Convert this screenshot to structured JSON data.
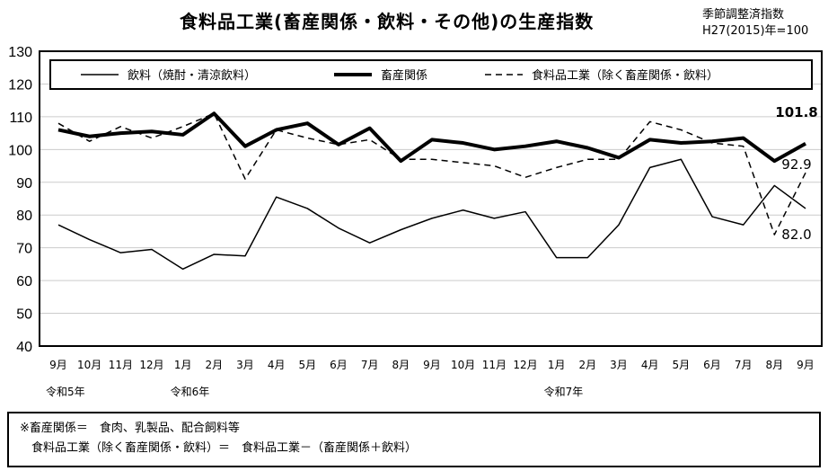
{
  "title": "食料品工業(畜産関係・飲料・その他)の生産指数",
  "subtitle": [
    "季節調整済指数",
    "H27(2015)年=100"
  ],
  "chart_data": {
    "type": "line",
    "categories": [
      "9月",
      "10月",
      "11月",
      "12月",
      "1月",
      "2月",
      "3月",
      "4月",
      "5月",
      "6月",
      "7月",
      "8月",
      "9月",
      "10月",
      "11月",
      "12月",
      "1月",
      "2月",
      "3月",
      "4月",
      "5月",
      "6月",
      "7月",
      "8月",
      "9月"
    ],
    "era_labels": [
      {
        "index": 0,
        "label": "令和5年"
      },
      {
        "index": 4,
        "label": "令和6年"
      },
      {
        "index": 16,
        "label": "令和7年"
      }
    ],
    "ylim": [
      40,
      130
    ],
    "yticks": [
      40,
      50,
      60,
      70,
      80,
      90,
      100,
      110,
      120,
      130
    ],
    "grid": true,
    "legend": "top",
    "series": [
      {
        "name": "飲料（焼酎・清涼飲料）",
        "style": "thin",
        "values": [
          77,
          72.5,
          68.5,
          69.5,
          63.5,
          68,
          67.5,
          85.5,
          82,
          76,
          71.5,
          75.5,
          79,
          81.5,
          79,
          81,
          67,
          67,
          77,
          94.5,
          97,
          79.5,
          77,
          89,
          82.0
        ]
      },
      {
        "name": "畜産関係",
        "style": "thick",
        "values": [
          106,
          104,
          105,
          105.5,
          104.5,
          111,
          101,
          106,
          108,
          101.5,
          106.5,
          96.5,
          103,
          102,
          100,
          101,
          102.5,
          100.5,
          97.5,
          103,
          102,
          102.5,
          103.5,
          96.5,
          101.8
        ]
      },
      {
        "name": "食料品工業（除く畜産関係・飲料）",
        "style": "dashed",
        "values": [
          108,
          102.5,
          107,
          103.5,
          107,
          111,
          91,
          106,
          103.5,
          101.5,
          103,
          97,
          97,
          96,
          95,
          91.5,
          94.5,
          97,
          97,
          108.5,
          106,
          102,
          101,
          74,
          92.9
        ]
      }
    ],
    "data_labels": [
      {
        "series": 1,
        "text": "101.8"
      },
      {
        "series": 2,
        "text": "92.9"
      },
      {
        "series": 0,
        "text": "82.0"
      }
    ]
  },
  "note": [
    "※畜産関係＝　食肉、乳製品、配合飼料等",
    "　食料品工業（除く畜産関係・飲料）＝　食料品工業－（畜産関係＋飲料）"
  ]
}
